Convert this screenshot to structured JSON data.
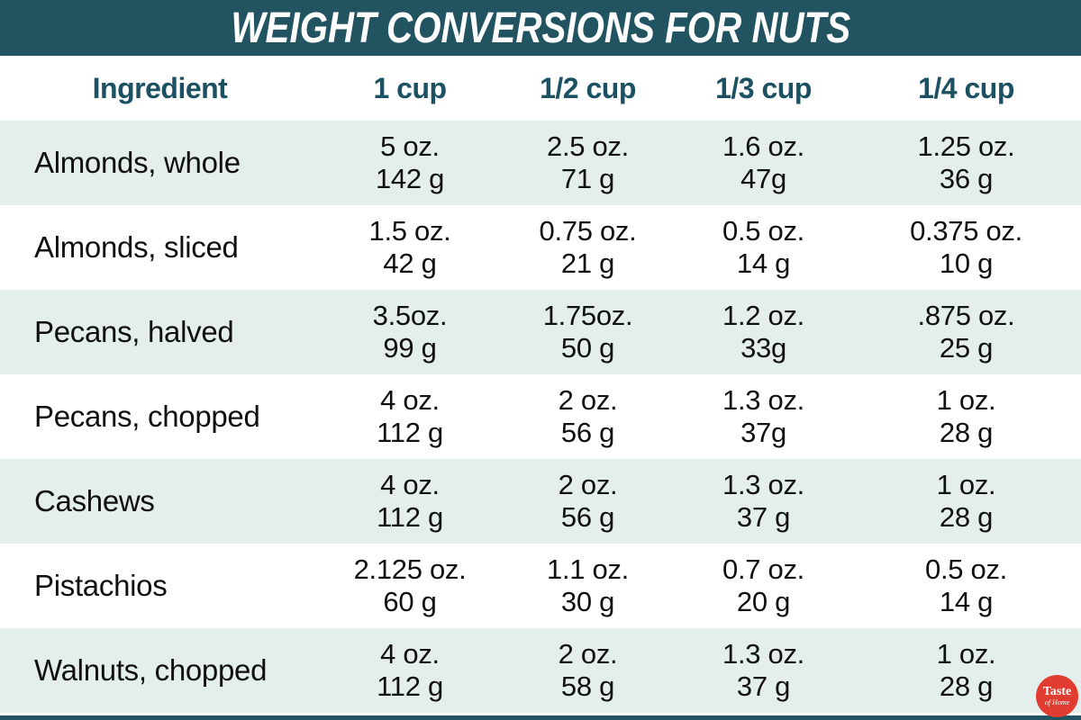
{
  "title": "WEIGHT CONVERSIONS FOR NUTS",
  "chart_data": {
    "type": "table",
    "title": "WEIGHT CONVERSIONS FOR NUTS",
    "columns": [
      "Ingredient",
      "1 cup",
      "1/2 cup",
      "1/3 cup",
      "1/4 cup"
    ],
    "rows": [
      {
        "ingredient": "Almonds, whole",
        "cups": [
          {
            "oz": "5 oz.",
            "g": "142 g"
          },
          {
            "oz": "2.5 oz.",
            "g": "71 g"
          },
          {
            "oz": "1.6 oz.",
            "g": "47g"
          },
          {
            "oz": "1.25 oz.",
            "g": "36 g"
          }
        ]
      },
      {
        "ingredient": "Almonds, sliced",
        "cups": [
          {
            "oz": "1.5 oz.",
            "g": "42 g"
          },
          {
            "oz": "0.75 oz.",
            "g": "21 g"
          },
          {
            "oz": "0.5 oz.",
            "g": "14 g"
          },
          {
            "oz": "0.375 oz.",
            "g": "10 g"
          }
        ]
      },
      {
        "ingredient": "Pecans, halved",
        "cups": [
          {
            "oz": "3.5oz.",
            "g": "99 g"
          },
          {
            "oz": "1.75oz.",
            "g": "50 g"
          },
          {
            "oz": "1.2 oz.",
            "g": "33g"
          },
          {
            "oz": ".875 oz.",
            "g": "25 g"
          }
        ]
      },
      {
        "ingredient": "Pecans, chopped",
        "cups": [
          {
            "oz": "4 oz.",
            "g": "112 g"
          },
          {
            "oz": "2 oz.",
            "g": "56 g"
          },
          {
            "oz": "1.3 oz.",
            "g": "37g"
          },
          {
            "oz": "1 oz.",
            "g": "28 g"
          }
        ]
      },
      {
        "ingredient": "Cashews",
        "cups": [
          {
            "oz": "4 oz.",
            "g": "112 g"
          },
          {
            "oz": "2 oz.",
            "g": "56 g"
          },
          {
            "oz": "1.3 oz.",
            "g": "37 g"
          },
          {
            "oz": "1 oz.",
            "g": "28 g"
          }
        ]
      },
      {
        "ingredient": "Pistachios",
        "cups": [
          {
            "oz": "2.125 oz.",
            "g": "60 g"
          },
          {
            "oz": "1.1 oz.",
            "g": "30 g"
          },
          {
            "oz": "0.7 oz.",
            "g": "20 g"
          },
          {
            "oz": "0.5 oz.",
            "g": "14 g"
          }
        ]
      },
      {
        "ingredient": "Walnuts, chopped",
        "cups": [
          {
            "oz": "4 oz.",
            "g": "112 g"
          },
          {
            "oz": "2 oz.",
            "g": "58 g"
          },
          {
            "oz": "1.3 oz.",
            "g": "37 g"
          },
          {
            "oz": "1 oz.",
            "g": "28 g"
          }
        ]
      }
    ]
  },
  "logo": {
    "name": "Taste of Home",
    "line1": "Taste",
    "line2": "of Home"
  },
  "colors": {
    "band_bg": "#215361",
    "band_text": "#ffffff",
    "column_header_text": "#1c5163",
    "row_alt_bg": "#e4eeec",
    "row_bg": "#ffffff",
    "cell_text": "#101010",
    "bottom_bar": "#215361",
    "logo_bg": "#e03c2f",
    "logo_text": "#ffffff"
  }
}
